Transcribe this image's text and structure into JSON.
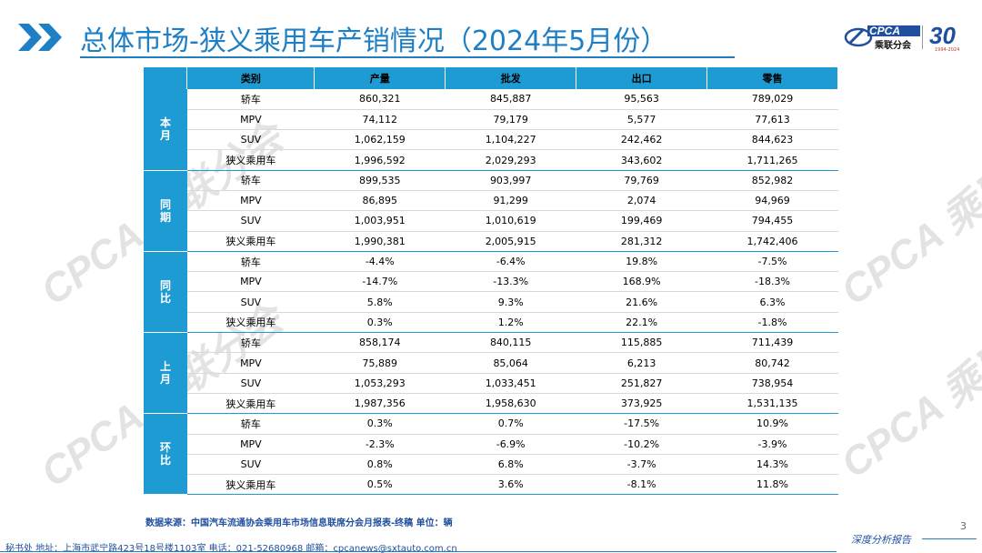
{
  "header": {
    "title": "总体市场-狭义乘用车产销情况（2024年5月份）",
    "logo_text": "CPCA",
    "logo_cn": "乘联分会",
    "anniversary": "30",
    "anniversary_sub": "1994-2024"
  },
  "watermark": "CPCA 乘联分会",
  "table": {
    "headers": [
      "类别",
      "产量",
      "批发",
      "出口",
      "零售"
    ],
    "groups": [
      {
        "label": [
          "本",
          "月"
        ],
        "rows": [
          {
            "cat": "轿车",
            "v": [
              "860,321",
              "845,887",
              "95,563",
              "789,029"
            ]
          },
          {
            "cat": "MPV",
            "v": [
              "74,112",
              "79,179",
              "5,577",
              "77,613"
            ]
          },
          {
            "cat": "SUV",
            "v": [
              "1,062,159",
              "1,104,227",
              "242,462",
              "844,623"
            ]
          },
          {
            "cat": "狭义乘用车",
            "v": [
              "1,996,592",
              "2,029,293",
              "343,602",
              "1,711,265"
            ]
          }
        ]
      },
      {
        "label": [
          "同",
          "期"
        ],
        "rows": [
          {
            "cat": "轿车",
            "v": [
              "899,535",
              "903,997",
              "79,769",
              "852,982"
            ]
          },
          {
            "cat": "MPV",
            "v": [
              "86,895",
              "91,299",
              "2,074",
              "94,969"
            ]
          },
          {
            "cat": "SUV",
            "v": [
              "1,003,951",
              "1,010,619",
              "199,469",
              "794,455"
            ]
          },
          {
            "cat": "狭义乘用车",
            "v": [
              "1,990,381",
              "2,005,915",
              "281,312",
              "1,742,406"
            ]
          }
        ]
      },
      {
        "label": [
          "同",
          "比"
        ],
        "rows": [
          {
            "cat": "轿车",
            "v": [
              "-4.4%",
              "-6.4%",
              "19.8%",
              "-7.5%"
            ]
          },
          {
            "cat": "MPV",
            "v": [
              "-14.7%",
              "-13.3%",
              "168.9%",
              "-18.3%"
            ]
          },
          {
            "cat": "SUV",
            "v": [
              "5.8%",
              "9.3%",
              "21.6%",
              "6.3%"
            ]
          },
          {
            "cat": "狭义乘用车",
            "v": [
              "0.3%",
              "1.2%",
              "22.1%",
              "-1.8%"
            ]
          }
        ]
      },
      {
        "label": [
          "上",
          "月"
        ],
        "rows": [
          {
            "cat": "轿车",
            "v": [
              "858,174",
              "840,115",
              "115,885",
              "711,439"
            ]
          },
          {
            "cat": "MPV",
            "v": [
              "75,889",
              "85,064",
              "6,213",
              "80,742"
            ]
          },
          {
            "cat": "SUV",
            "v": [
              "1,053,293",
              "1,033,451",
              "251,827",
              "738,954"
            ]
          },
          {
            "cat": "狭义乘用车",
            "v": [
              "1,987,356",
              "1,958,630",
              "373,925",
              "1,531,135"
            ]
          }
        ]
      },
      {
        "label": [
          "环",
          "比"
        ],
        "rows": [
          {
            "cat": "轿车",
            "v": [
              "0.3%",
              "0.7%",
              "-17.5%",
              "10.9%"
            ]
          },
          {
            "cat": "MPV",
            "v": [
              "-2.3%",
              "-6.9%",
              "-10.2%",
              "-3.9%"
            ]
          },
          {
            "cat": "SUV",
            "v": [
              "0.8%",
              "6.8%",
              "-3.7%",
              "14.3%"
            ]
          },
          {
            "cat": "狭义乘用车",
            "v": [
              "0.5%",
              "3.6%",
              "-8.1%",
              "11.8%"
            ]
          }
        ]
      }
    ]
  },
  "source_note": "数据来源：中国汽车流通协会乘用车市场信息联席分会月报表-终稿    单位：辆",
  "footer": {
    "contact": "秘书处   地址：上海市武宁路423号18号楼1103室    电话：021-52680968    邮箱：cpcanews@sxtauto.com.cn",
    "tagline": "深度分析报告",
    "page_number": "3"
  },
  "colors": {
    "accent": "#1f9bd3",
    "title": "#1f7fc4",
    "brand": "#1f4f9e"
  }
}
